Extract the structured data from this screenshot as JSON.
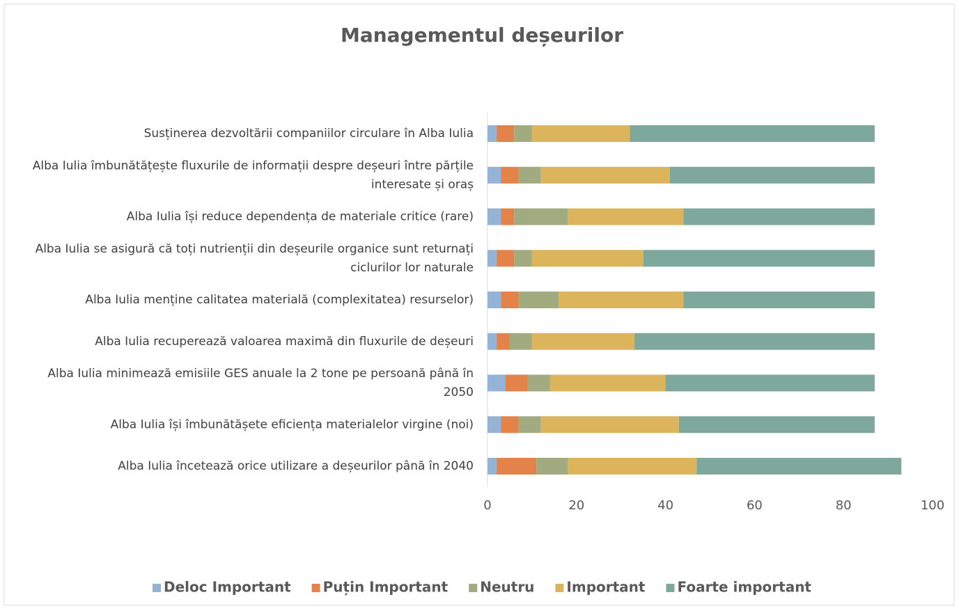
{
  "chart_data": {
    "type": "stacked-bar-horizontal",
    "title": "Managementul deșeurilor",
    "categories": [
      "Susținerea dezvoltării companiilor circulare în Alba Iulia",
      "Alba Iulia îmbunătățește fluxurile de informații despre deșeuri între părțile interesate și oraș",
      "Alba Iulia își reduce dependența de materiale critice (rare)",
      "Alba Iulia se asigură că toți nutrienții din deșeurile organice sunt returnați ciclurilor lor naturale",
      "Alba Iulia menține calitatea materială (complexitatea) resurselor)",
      "Alba Iulia recuperează valoarea maximă din fluxurile de deșeuri",
      "Alba Iulia minimează emisiile GES anuale la 2 tone pe persoană până în 2050",
      "Alba Iulia își îmbunătășete eficiența materialelor virgine (noi)",
      "Alba Iulia încetează orice utilizare a deșeurilor până în 2040"
    ],
    "series": [
      {
        "name": "Deloc Important",
        "color": "#95b3d7",
        "values": [
          2,
          3,
          3,
          2,
          3,
          2,
          4,
          3,
          2
        ]
      },
      {
        "name": "Puțin Important",
        "color": "#e3834a",
        "values": [
          4,
          4,
          3,
          4,
          4,
          3,
          5,
          4,
          9
        ]
      },
      {
        "name": "Neutru",
        "color": "#a2aa80",
        "values": [
          4,
          5,
          12,
          4,
          9,
          5,
          5,
          5,
          7
        ]
      },
      {
        "name": "Important",
        "color": "#dcb45c",
        "values": [
          22,
          29,
          26,
          25,
          28,
          23,
          26,
          31,
          29
        ]
      },
      {
        "name": "Foarte important",
        "color": "#7ea89b",
        "values": [
          55,
          46,
          43,
          52,
          43,
          54,
          47,
          44,
          46
        ]
      }
    ],
    "xlim": [
      0,
      100
    ],
    "xticks": [
      0,
      20,
      40,
      60,
      80,
      100
    ],
    "grid": false,
    "legend": "bottom"
  }
}
